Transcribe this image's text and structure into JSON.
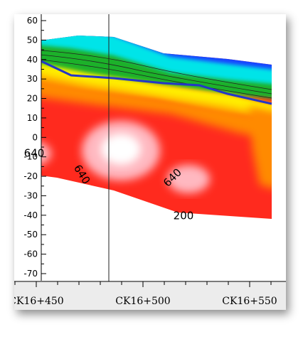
{
  "chart_data": {
    "type": "heatmap",
    "title": "",
    "xlabel": "",
    "ylabel": "",
    "ylim": [
      -75,
      62
    ],
    "y_ticks": [
      60,
      50,
      40,
      30,
      20,
      10,
      0,
      -10,
      -20,
      -30,
      -40,
      -50,
      -60,
      -70
    ],
    "x_ticks": [
      "CK16+450",
      "CK16+500",
      "CK16+550"
    ],
    "grid": false,
    "contour_labels": [
      {
        "text": "640",
        "chainage": 16470,
        "elevation": -20
      },
      {
        "text": "640",
        "chainage": 16515,
        "elevation": -22
      },
      {
        "text": "640",
        "chainage": 16449,
        "elevation": -10
      },
      {
        "text": "200",
        "chainage": 16519,
        "elevation": -42
      }
    ],
    "colors": {
      "red": "#ff2a1e",
      "orange": "#ff8a00",
      "yellow": "#ffee00",
      "green": "#1bb12a",
      "cyan": "#00e4e8",
      "blue": "#1744ff",
      "pink": "#ffb8c0",
      "boundary_line": "#2436c8"
    }
  }
}
